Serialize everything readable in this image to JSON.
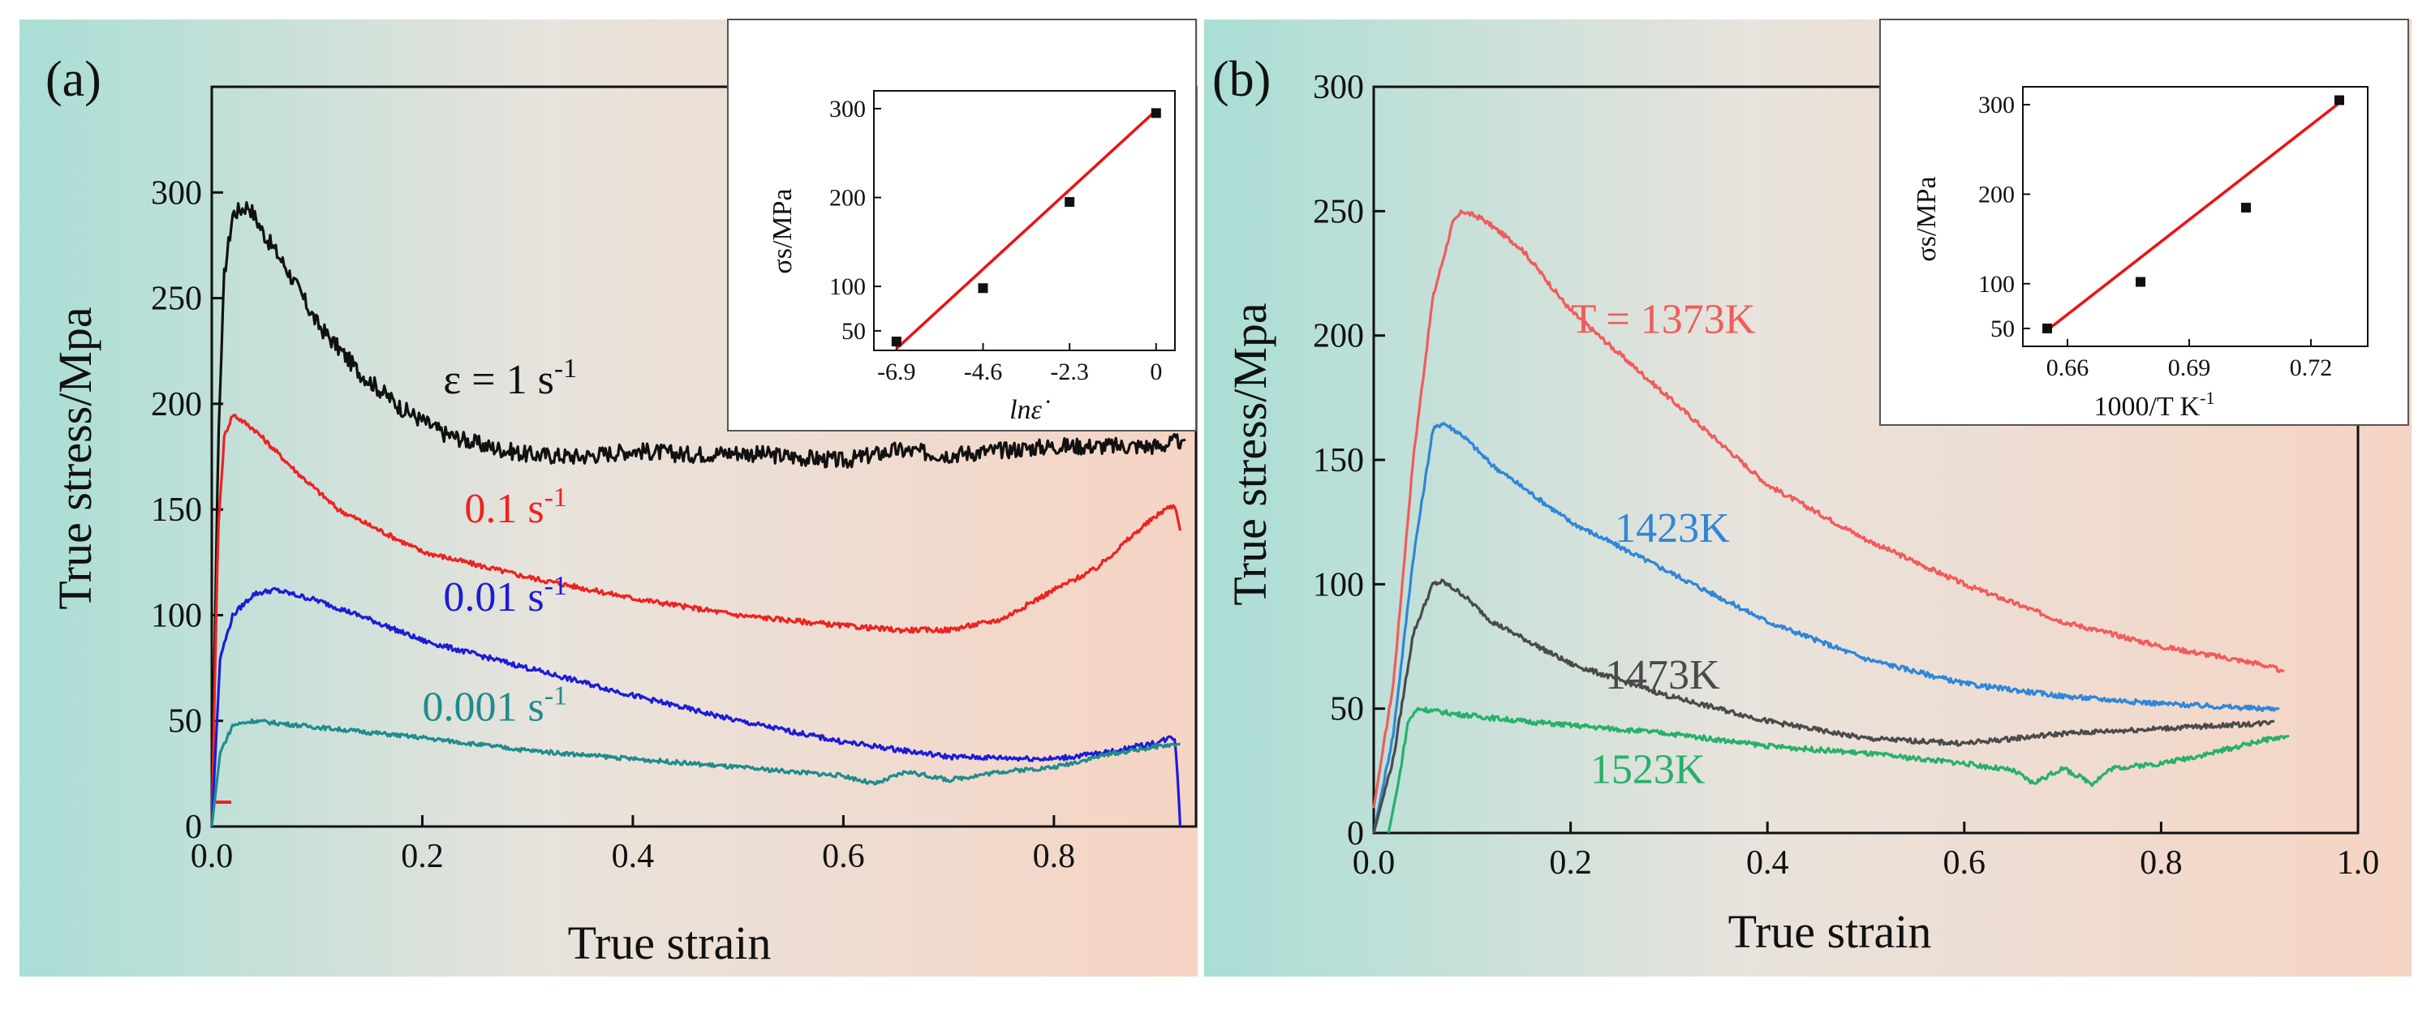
{
  "colors": {
    "grad_left": "#a9ded6",
    "grad_mid": "#ece6df",
    "grad_right": "#f6d4c4",
    "black": "#111111",
    "red": "#ee2222",
    "blue": "#1c1cd6",
    "teal": "#1e8c8c",
    "green": "#1ba84e",
    "light_red": "#f15b5b",
    "light_blue": "#2f86d8",
    "gray": "#4a4a4a",
    "light_green": "#27b06a",
    "inset_fit": "#ee1111"
  },
  "chart_data": [
    {
      "type": "line",
      "panel": "(a)",
      "xlabel": "True strain",
      "ylabel": "True stress/Mpa",
      "xlim": [
        0,
        0.935
      ],
      "ylim": [
        0,
        350
      ],
      "xticks": [
        "0.0",
        "0.2",
        "0.4",
        "0.6",
        "0.8"
      ],
      "xtick_values": [
        0,
        0.2,
        0.4,
        0.6,
        0.8
      ],
      "yticks": [
        "0",
        "50",
        "100",
        "150",
        "200",
        "250",
        "300"
      ],
      "ytick_values": [
        0,
        50,
        100,
        150,
        200,
        250,
        300
      ],
      "series": [
        {
          "name": "1 s-1",
          "label_main": "ε = 1 s",
          "label_sup": "-1",
          "label_at": [
            0.22,
            205
          ],
          "color_key": "black",
          "noise": 4,
          "points": [
            [
              0,
              0
            ],
            [
              0.006,
              180
            ],
            [
              0.012,
              262
            ],
            [
              0.02,
              290
            ],
            [
              0.035,
              294
            ],
            [
              0.05,
              280
            ],
            [
              0.07,
              265
            ],
            [
              0.1,
              238
            ],
            [
              0.14,
              215
            ],
            [
              0.18,
              198
            ],
            [
              0.22,
              186
            ],
            [
              0.26,
              180
            ],
            [
              0.3,
              176
            ],
            [
              0.35,
              175
            ],
            [
              0.4,
              178
            ],
            [
              0.45,
              176
            ],
            [
              0.5,
              177
            ],
            [
              0.55,
              175
            ],
            [
              0.6,
              173
            ],
            [
              0.65,
              178
            ],
            [
              0.7,
              176
            ],
            [
              0.75,
              178
            ],
            [
              0.8,
              180
            ],
            [
              0.85,
              180
            ],
            [
              0.9,
              180
            ],
            [
              0.925,
              183
            ]
          ]
        },
        {
          "name": "0.1 s-1",
          "label_main": "0.1 s",
          "label_sup": "-1",
          "label_at": [
            0.24,
            144
          ],
          "color_key": "red",
          "noise": 1.2,
          "points": [
            [
              0,
              0
            ],
            [
              0.006,
              140
            ],
            [
              0.012,
              185
            ],
            [
              0.02,
              195
            ],
            [
              0.04,
              188
            ],
            [
              0.08,
              168
            ],
            [
              0.12,
              150
            ],
            [
              0.2,
              130
            ],
            [
              0.3,
              118
            ],
            [
              0.4,
              108
            ],
            [
              0.5,
              100
            ],
            [
              0.6,
              95
            ],
            [
              0.65,
              93
            ],
            [
              0.7,
              93
            ],
            [
              0.75,
              98
            ],
            [
              0.8,
              112
            ],
            [
              0.84,
              122
            ],
            [
              0.88,
              140
            ],
            [
              0.905,
              150
            ],
            [
              0.915,
              152
            ],
            [
              0.92,
              140
            ]
          ]
        },
        {
          "name": "0.01 s-1",
          "label_main": "0.01 s",
          "label_sup": "-1",
          "label_at": [
            0.22,
            102
          ],
          "color_key": "blue",
          "noise": 1.2,
          "points": [
            [
              0,
              0
            ],
            [
              0.008,
              80
            ],
            [
              0.02,
              100
            ],
            [
              0.04,
              110
            ],
            [
              0.06,
              112
            ],
            [
              0.1,
              107
            ],
            [
              0.15,
              98
            ],
            [
              0.2,
              88
            ],
            [
              0.3,
              75
            ],
            [
              0.4,
              62
            ],
            [
              0.5,
              50
            ],
            [
              0.6,
              40
            ],
            [
              0.7,
              33
            ],
            [
              0.8,
              32
            ],
            [
              0.85,
              35
            ],
            [
              0.9,
              40
            ],
            [
              0.91,
              42
            ],
            [
              0.915,
              42
            ],
            [
              0.918,
              20
            ],
            [
              0.92,
              0
            ]
          ]
        },
        {
          "name": "0.001 s-1",
          "label_main": "0.001 s",
          "label_sup": "-1",
          "label_at": [
            0.2,
            50
          ],
          "color_key": "teal",
          "noise": 1,
          "points": [
            [
              0,
              0
            ],
            [
              0.008,
              35
            ],
            [
              0.02,
              48
            ],
            [
              0.04,
              50
            ],
            [
              0.1,
              47
            ],
            [
              0.2,
              42
            ],
            [
              0.3,
              36
            ],
            [
              0.4,
              32
            ],
            [
              0.5,
              28
            ],
            [
              0.55,
              26
            ],
            [
              0.6,
              24
            ],
            [
              0.63,
              20
            ],
            [
              0.66,
              26
            ],
            [
              0.7,
              22
            ],
            [
              0.75,
              26
            ],
            [
              0.8,
              28
            ],
            [
              0.85,
              34
            ],
            [
              0.9,
              38
            ],
            [
              0.92,
              39
            ]
          ]
        }
      ],
      "inset": {
        "xlabel": "lnε̇",
        "ylabel": "σs/MPa",
        "xlim": [
          -7.5,
          0.5
        ],
        "ylim": [
          28,
          320
        ],
        "xticks": [
          "-6.9",
          "-4.6",
          "-2.3",
          "0"
        ],
        "xtick_values": [
          -6.9,
          -4.6,
          -2.3,
          0
        ],
        "yticks": [
          "50",
          "100",
          "200",
          "300"
        ],
        "ytick_values": [
          50,
          100,
          200,
          300
        ],
        "points": [
          [
            -6.9,
            38
          ],
          [
            -4.6,
            98
          ],
          [
            -2.3,
            195
          ],
          [
            0,
            295
          ]
        ],
        "fit": [
          [
            -6.9,
            30
          ],
          [
            0,
            298
          ]
        ]
      }
    },
    {
      "type": "line",
      "panel": "(b)",
      "xlabel": "True strain",
      "ylabel": "True stress/Mpa",
      "xlim": [
        0,
        1.0
      ],
      "ylim": [
        0,
        300
      ],
      "xticks": [
        "0.0",
        "0.2",
        "0.4",
        "0.6",
        "0.8",
        "1.0"
      ],
      "xtick_values": [
        0,
        0.2,
        0.4,
        0.6,
        0.8,
        1.0
      ],
      "yticks": [
        "0",
        "50",
        "100",
        "150",
        "200",
        "250",
        "300"
      ],
      "ytick_values": [
        0,
        50,
        100,
        150,
        200,
        250,
        300
      ],
      "series": [
        {
          "name": "T = 1373K",
          "label_main": "T = 1373K",
          "label_sup": "",
          "label_at": [
            0.2,
            201
          ],
          "color_key": "light_red",
          "noise": 1,
          "points": [
            [
              0,
              10
            ],
            [
              0.02,
              60
            ],
            [
              0.04,
              150
            ],
            [
              0.06,
              215
            ],
            [
              0.08,
              245
            ],
            [
              0.09,
              250
            ],
            [
              0.11,
              247
            ],
            [
              0.15,
              235
            ],
            [
              0.2,
              210
            ],
            [
              0.3,
              175
            ],
            [
              0.4,
              140
            ],
            [
              0.5,
              118
            ],
            [
              0.6,
              100
            ],
            [
              0.7,
              85
            ],
            [
              0.8,
              75
            ],
            [
              0.9,
              68
            ],
            [
              0.925,
              65
            ]
          ]
        },
        {
          "name": "1423K",
          "label_main": "1423K",
          "label_sup": "",
          "label_at": [
            0.245,
            117
          ],
          "color_key": "light_blue",
          "noise": 1,
          "points": [
            [
              0,
              0
            ],
            [
              0.02,
              40
            ],
            [
              0.04,
              110
            ],
            [
              0.06,
              162
            ],
            [
              0.07,
              165
            ],
            [
              0.09,
              160
            ],
            [
              0.12,
              148
            ],
            [
              0.2,
              125
            ],
            [
              0.3,
              105
            ],
            [
              0.4,
              85
            ],
            [
              0.5,
              70
            ],
            [
              0.6,
              60
            ],
            [
              0.7,
              55
            ],
            [
              0.8,
              52
            ],
            [
              0.9,
              50
            ],
            [
              0.92,
              50
            ]
          ]
        },
        {
          "name": "1473K",
          "label_main": "1473K",
          "label_sup": "",
          "label_at": [
            0.235,
            58
          ],
          "color_key": "gray",
          "noise": 1,
          "points": [
            [
              0,
              0
            ],
            [
              0.02,
              30
            ],
            [
              0.04,
              80
            ],
            [
              0.06,
              100
            ],
            [
              0.07,
              101
            ],
            [
              0.09,
              96
            ],
            [
              0.12,
              85
            ],
            [
              0.2,
              68
            ],
            [
              0.3,
              55
            ],
            [
              0.4,
              45
            ],
            [
              0.5,
              38
            ],
            [
              0.6,
              36
            ],
            [
              0.65,
              38
            ],
            [
              0.7,
              40
            ],
            [
              0.8,
              42
            ],
            [
              0.9,
              44
            ],
            [
              0.915,
              45
            ]
          ]
        },
        {
          "name": "1523K",
          "label_main": "1523K",
          "label_sup": "",
          "label_at": [
            0.22,
            20
          ],
          "color_key": "light_green",
          "noise": 1,
          "points": [
            [
              0.015,
              0
            ],
            [
              0.025,
              20
            ],
            [
              0.035,
              45
            ],
            [
              0.045,
              50
            ],
            [
              0.08,
              48
            ],
            [
              0.15,
              45
            ],
            [
              0.3,
              40
            ],
            [
              0.4,
              35
            ],
            [
              0.5,
              32
            ],
            [
              0.6,
              28
            ],
            [
              0.65,
              25
            ],
            [
              0.67,
              20
            ],
            [
              0.7,
              26
            ],
            [
              0.73,
              20
            ],
            [
              0.75,
              26
            ],
            [
              0.8,
              28
            ],
            [
              0.85,
              32
            ],
            [
              0.9,
              37
            ],
            [
              0.93,
              39
            ]
          ]
        }
      ],
      "inset": {
        "xlabel": "1000/T   K-1",
        "xlabel_main": "1000/T    K",
        "xlabel_sup": "-1",
        "ylabel": "σs/MPa",
        "xlim": [
          0.649,
          0.734
        ],
        "ylim": [
          30,
          320
        ],
        "xticks": [
          "0.66",
          "0.69",
          "0.72"
        ],
        "xtick_values": [
          0.66,
          0.69,
          0.72
        ],
        "yticks": [
          "50",
          "100",
          "200",
          "300"
        ],
        "ytick_values": [
          50,
          100,
          200,
          300
        ],
        "points": [
          [
            0.655,
            50
          ],
          [
            0.678,
            102
          ],
          [
            0.704,
            185
          ],
          [
            0.727,
            305
          ]
        ],
        "fit": [
          [
            0.655,
            48
          ],
          [
            0.727,
            302
          ]
        ]
      }
    }
  ]
}
